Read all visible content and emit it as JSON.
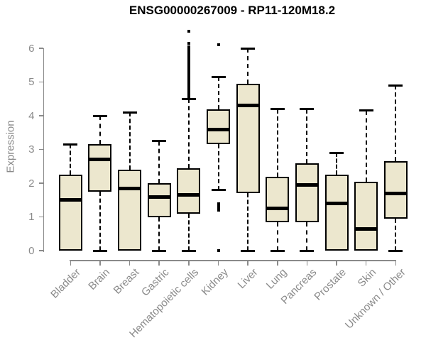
{
  "chart_data": {
    "type": "boxplot",
    "title": "ENSG00000267009 - RP11-120M18.2",
    "xlabel": "",
    "ylabel": "Expression",
    "ylim": [
      0,
      6
    ],
    "yticks": [
      0,
      1,
      2,
      3,
      4,
      5,
      6
    ],
    "grid": false,
    "legend": "none",
    "box_fill_color": "#ece7ce",
    "box_stroke_color": "#000000",
    "axis_color": "#8a8a8a",
    "label_color": "#8a8a8a",
    "title_color": "#000000",
    "categories": [
      "Bladder",
      "Brain",
      "Breast",
      "Gastric",
      "Hematopoietic cells",
      "Kidney",
      "Liver",
      "Lung",
      "Pancreas",
      "Prostate",
      "Skin",
      "Unknown / Other"
    ],
    "series": [
      {
        "category": "Bladder",
        "min": 0,
        "q1": 0,
        "median": 1.5,
        "q3": 2.25,
        "max": 3.15,
        "outliers": []
      },
      {
        "category": "Brain",
        "min": 0,
        "q1": 1.75,
        "median": 2.7,
        "q3": 3.15,
        "max": 4.0,
        "outliers": []
      },
      {
        "category": "Breast",
        "min": 0,
        "q1": 0,
        "median": 1.85,
        "q3": 2.4,
        "max": 4.1,
        "outliers": []
      },
      {
        "category": "Gastric",
        "min": 0,
        "q1": 1.0,
        "median": 1.6,
        "q3": 2.0,
        "max": 3.25,
        "outliers": []
      },
      {
        "category": "Hematopoietic cells",
        "min": 0,
        "q1": 1.1,
        "median": 1.65,
        "q3": 2.45,
        "max": 4.5,
        "outliers": [
          6.5,
          6.15,
          6.05,
          5.95,
          5.9,
          5.85,
          5.8,
          5.75,
          5.7,
          5.65,
          5.6,
          5.55,
          5.5,
          5.45,
          5.4,
          5.35,
          5.3,
          5.25,
          5.2,
          5.15,
          5.1,
          5.05,
          5.0,
          4.95,
          4.9,
          4.85,
          4.8,
          4.75,
          4.7,
          4.65,
          4.6,
          4.55
        ]
      },
      {
        "category": "Kidney",
        "min": 1.8,
        "q1": 3.15,
        "median": 3.6,
        "q3": 4.2,
        "max": 5.15,
        "outliers": [
          6.1,
          1.4,
          1.35,
          1.28,
          1.2,
          0
        ]
      },
      {
        "category": "Liver",
        "min": 0,
        "q1": 1.7,
        "median": 4.3,
        "q3": 4.95,
        "max": 6.0,
        "outliers": []
      },
      {
        "category": "Lung",
        "min": 0,
        "q1": 0.85,
        "median": 1.25,
        "q3": 2.2,
        "max": 4.2,
        "outliers": []
      },
      {
        "category": "Pancreas",
        "min": 0,
        "q1": 0.85,
        "median": 1.95,
        "q3": 2.6,
        "max": 4.2,
        "outliers": []
      },
      {
        "category": "Prostate",
        "min": 0,
        "q1": 0,
        "median": 1.4,
        "q3": 2.25,
        "max": 2.9,
        "outliers": []
      },
      {
        "category": "Skin",
        "min": 0,
        "q1": 0,
        "median": 0.65,
        "q3": 2.05,
        "max": 4.15,
        "outliers": []
      },
      {
        "category": "Unknown / Other",
        "min": 0,
        "q1": 0.95,
        "median": 1.7,
        "q3": 2.65,
        "max": 4.9,
        "outliers": []
      }
    ]
  }
}
